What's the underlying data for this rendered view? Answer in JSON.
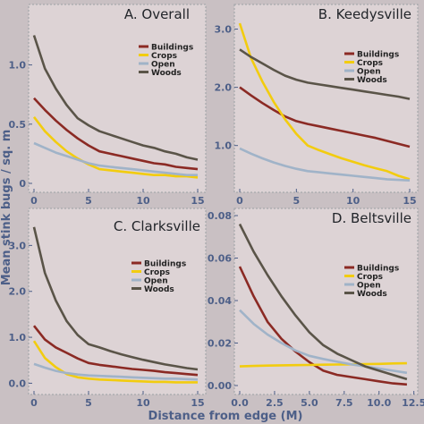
{
  "figure": {
    "ylabel": "Mean stink bugs / sq. m",
    "xlabel": "Distance from edge (M)"
  },
  "chart_data": [
    {
      "type": "line",
      "title": "A. Overall",
      "x": [
        0,
        1,
        2,
        3,
        4,
        5,
        6,
        7,
        8,
        9,
        10,
        11,
        12,
        13,
        14,
        15
      ],
      "xlim": [
        0,
        15
      ],
      "ylim": [
        0,
        1.45
      ],
      "xticks": [
        0,
        5,
        10,
        15
      ],
      "yticks": [
        0.0,
        0.5,
        1.0
      ],
      "ytick_labels": [
        "0",
        "0.5",
        "1.0"
      ],
      "legend_position": "top-right",
      "series": [
        {
          "name": "Buildings",
          "color": "#8b2a24",
          "values": [
            0.72,
            0.62,
            0.53,
            0.45,
            0.38,
            0.32,
            0.27,
            0.25,
            0.23,
            0.21,
            0.19,
            0.17,
            0.16,
            0.14,
            0.13,
            0.12
          ]
        },
        {
          "name": "Crops",
          "color": "#f2cc0f",
          "values": [
            0.56,
            0.44,
            0.35,
            0.27,
            0.21,
            0.16,
            0.12,
            0.11,
            0.1,
            0.09,
            0.08,
            0.07,
            0.07,
            0.06,
            0.06,
            0.05
          ]
        },
        {
          "name": "Open",
          "color": "#a0b3c8",
          "values": [
            0.34,
            0.3,
            0.26,
            0.23,
            0.2,
            0.17,
            0.15,
            0.14,
            0.13,
            0.12,
            0.11,
            0.1,
            0.09,
            0.08,
            0.07,
            0.07
          ]
        },
        {
          "name": "Woods",
          "color": "#5a5448",
          "values": [
            1.25,
            0.97,
            0.8,
            0.66,
            0.55,
            0.49,
            0.44,
            0.41,
            0.38,
            0.35,
            0.32,
            0.3,
            0.27,
            0.25,
            0.22,
            0.2
          ]
        }
      ]
    },
    {
      "type": "line",
      "title": "B. Keedysville",
      "x": [
        0,
        1,
        2,
        3,
        4,
        5,
        6,
        7,
        8,
        9,
        10,
        11,
        12,
        13,
        14,
        15
      ],
      "xlim": [
        0,
        15
      ],
      "ylim": [
        0.35,
        3.3
      ],
      "xticks": [
        0,
        5,
        10,
        15
      ],
      "yticks": [
        1.0,
        2.0,
        3.0
      ],
      "ytick_labels": [
        "1.0",
        "2.0",
        "3.0"
      ],
      "legend_position": "top-right",
      "series": [
        {
          "name": "Buildings",
          "color": "#8b2a24",
          "values": [
            2.0,
            1.86,
            1.73,
            1.61,
            1.5,
            1.42,
            1.37,
            1.33,
            1.29,
            1.25,
            1.21,
            1.17,
            1.13,
            1.08,
            1.03,
            0.98
          ]
        },
        {
          "name": "Crops",
          "color": "#f2cc0f",
          "values": [
            3.1,
            2.5,
            2.1,
            1.75,
            1.45,
            1.2,
            1.0,
            0.92,
            0.85,
            0.78,
            0.72,
            0.66,
            0.61,
            0.56,
            0.48,
            0.42
          ]
        },
        {
          "name": "Open",
          "color": "#a0b3c8",
          "values": [
            0.95,
            0.86,
            0.78,
            0.71,
            0.65,
            0.6,
            0.56,
            0.54,
            0.52,
            0.5,
            0.48,
            0.46,
            0.44,
            0.42,
            0.41,
            0.4
          ]
        },
        {
          "name": "Woods",
          "color": "#5a5448",
          "values": [
            2.65,
            2.52,
            2.41,
            2.3,
            2.2,
            2.13,
            2.08,
            2.05,
            2.02,
            1.99,
            1.96,
            1.93,
            1.9,
            1.87,
            1.84,
            1.8
          ]
        }
      ]
    },
    {
      "type": "line",
      "title": "C. Clarksville",
      "x": [
        0,
        1,
        2,
        3,
        4,
        5,
        6,
        7,
        8,
        9,
        10,
        11,
        12,
        13,
        14,
        15
      ],
      "xlim": [
        0,
        15
      ],
      "ylim": [
        -0.05,
        3.65
      ],
      "xticks": [
        0,
        5,
        10,
        15
      ],
      "yticks": [
        0.0,
        1.0,
        2.0,
        3.0
      ],
      "ytick_labels": [
        "0.0",
        "1.0",
        "2.0",
        "3.0"
      ],
      "legend_position": "top-right",
      "series": [
        {
          "name": "Buildings",
          "color": "#8b2a24",
          "values": [
            1.25,
            0.95,
            0.78,
            0.66,
            0.54,
            0.44,
            0.4,
            0.37,
            0.34,
            0.31,
            0.29,
            0.27,
            0.24,
            0.22,
            0.2,
            0.18
          ]
        },
        {
          "name": "Crops",
          "color": "#f2cc0f",
          "values": [
            0.92,
            0.55,
            0.35,
            0.2,
            0.13,
            0.1,
            0.08,
            0.07,
            0.06,
            0.05,
            0.04,
            0.03,
            0.03,
            0.02,
            0.02,
            0.02
          ]
        },
        {
          "name": "Open",
          "color": "#a0b3c8",
          "values": [
            0.42,
            0.34,
            0.27,
            0.22,
            0.19,
            0.17,
            0.16,
            0.15,
            0.14,
            0.13,
            0.12,
            0.11,
            0.1,
            0.1,
            0.09,
            0.08
          ]
        },
        {
          "name": "Woods",
          "color": "#5a5448",
          "values": [
            3.4,
            2.4,
            1.8,
            1.35,
            1.05,
            0.85,
            0.78,
            0.7,
            0.63,
            0.57,
            0.51,
            0.46,
            0.41,
            0.37,
            0.33,
            0.3
          ]
        }
      ]
    },
    {
      "type": "line",
      "title": "D. Beltsville",
      "x": [
        0,
        1,
        2,
        3,
        4,
        5,
        6,
        7,
        8,
        9,
        10,
        11,
        12
      ],
      "xlim": [
        0,
        12.2
      ],
      "ylim": [
        0,
        0.08
      ],
      "xticks": [
        0,
        2.5,
        5,
        7.5,
        10,
        12.5
      ],
      "xtick_labels": [
        "0.0",
        "2.5",
        "5.0",
        "7.5",
        "10.0",
        "12.5"
      ],
      "yticks": [
        0.0,
        0.02,
        0.04,
        0.06,
        0.08
      ],
      "ytick_labels": [
        "0.00",
        "0.02",
        "0.04",
        "0.06",
        "0.08"
      ],
      "legend_position": "right",
      "series": [
        {
          "name": "Buildings",
          "color": "#8b2a24",
          "values": [
            0.056,
            0.042,
            0.03,
            0.022,
            0.016,
            0.011,
            0.007,
            0.005,
            0.004,
            0.003,
            0.002,
            0.001,
            0.0005
          ]
        },
        {
          "name": "Crops",
          "color": "#f2cc0f",
          "values": [
            0.009,
            0.0092,
            0.0094,
            0.0095,
            0.0096,
            0.0097,
            0.0098,
            0.0099,
            0.01,
            0.0101,
            0.0102,
            0.0104,
            0.0105
          ]
        },
        {
          "name": "Open",
          "color": "#a0b3c8",
          "values": [
            0.0355,
            0.029,
            0.024,
            0.02,
            0.0165,
            0.014,
            0.0125,
            0.0112,
            0.01,
            0.009,
            0.008,
            0.007,
            0.006
          ]
        },
        {
          "name": "Woods",
          "color": "#5a5448",
          "values": [
            0.076,
            0.063,
            0.052,
            0.042,
            0.033,
            0.025,
            0.019,
            0.015,
            0.012,
            0.009,
            0.007,
            0.005,
            0.003
          ]
        }
      ]
    }
  ]
}
